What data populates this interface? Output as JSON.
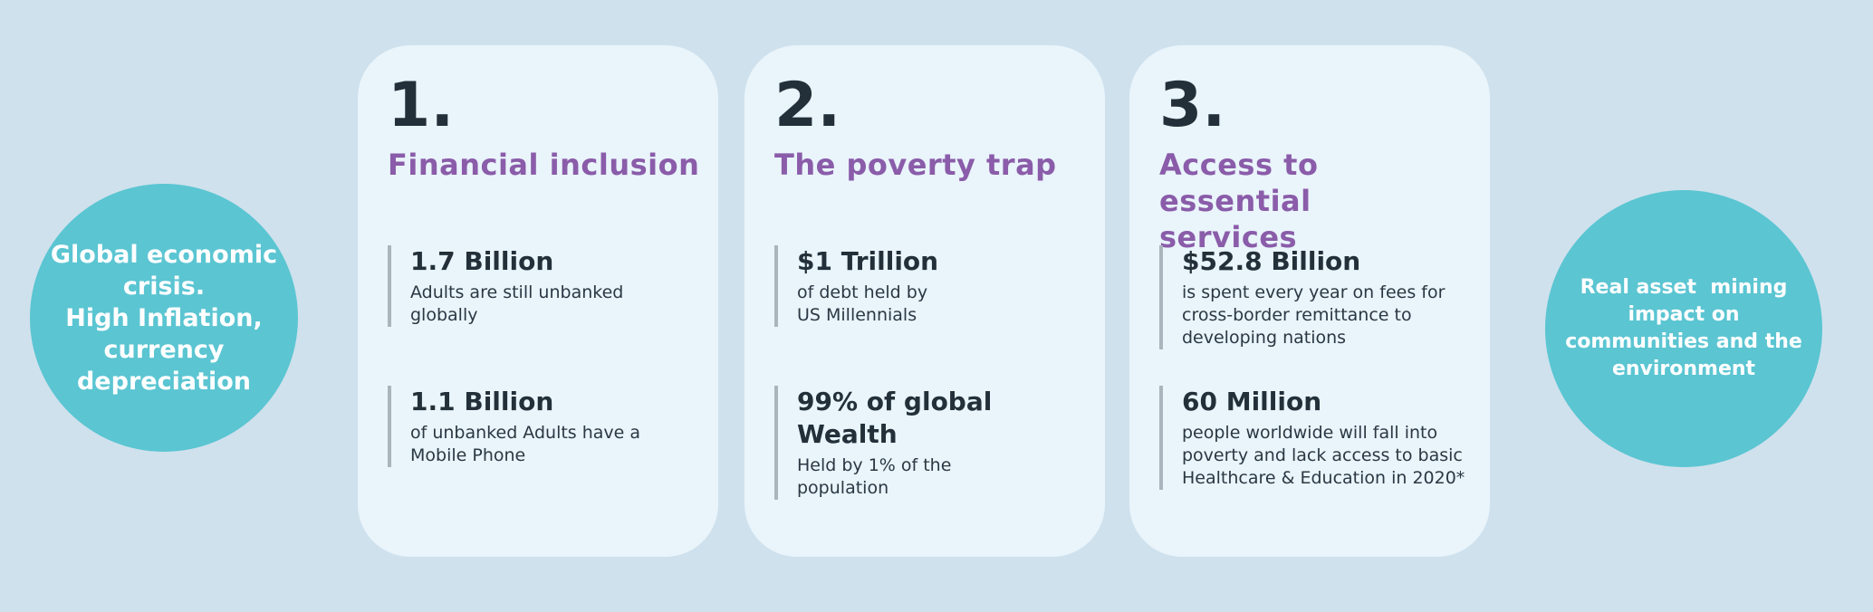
{
  "colors": {
    "page_bg": "#cfe1ed",
    "card_bg": "#e9f4fb",
    "accent_teal": "#5bc5d2",
    "accent_purple": "#8a5ca9",
    "text_dark": "#233039",
    "bar_gray": "#a9b4bc",
    "circle_text": "#ffffff"
  },
  "left_circle": {
    "lines": [
      "Global economic",
      "crisis.",
      "High Inflation,",
      "currency",
      "depreciation"
    ]
  },
  "right_circle": {
    "lines": [
      "Real asset  mining",
      "impact on",
      "communities and the",
      "environment"
    ]
  },
  "cards": [
    {
      "number": "1.",
      "title_lines": [
        "Financial inclusion"
      ],
      "stats": [
        {
          "value": "1.7 Billion",
          "desc_lines": [
            "Adults are still unbanked",
            "globally"
          ]
        },
        {
          "value": "1.1 Billion",
          "desc_lines": [
            "of unbanked Adults have a",
            "Mobile Phone"
          ]
        }
      ]
    },
    {
      "number": "2.",
      "title_lines": [
        "The poverty trap"
      ],
      "stats": [
        {
          "value": "$1 Trillion",
          "desc_lines": [
            "of debt held by",
            "US Millennials"
          ]
        },
        {
          "value": "99% of global Wealth",
          "desc_lines": [
            "Held by 1% of the",
            "population"
          ]
        }
      ]
    },
    {
      "number": "3.",
      "title_lines": [
        "Access to essential",
        "services"
      ],
      "stats": [
        {
          "value": "$52.8 Billion",
          "desc_lines": [
            "is spent every year on fees for",
            "cross-border remittance to",
            "developing nations"
          ]
        },
        {
          "value": "60 Million",
          "desc_lines": [
            "people worldwide will fall into",
            "poverty and lack access to basic",
            "Healthcare & Education in 2020*"
          ]
        }
      ]
    }
  ]
}
